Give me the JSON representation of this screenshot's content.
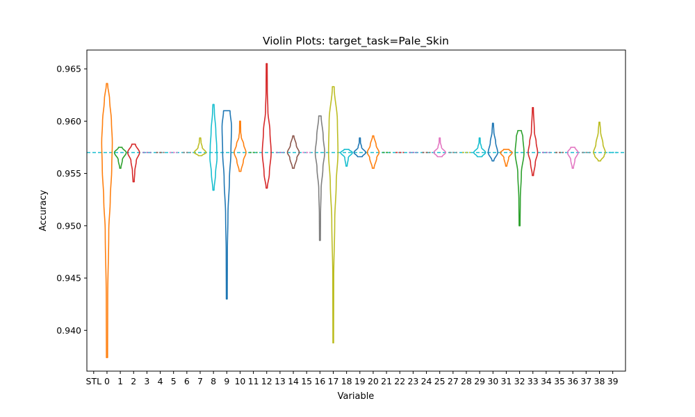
{
  "chart_data": {
    "type": "violin",
    "title": "Violin Plots: target_task=Pale_Skin",
    "xlabel": "Variable",
    "ylabel": "Accuracy",
    "ylim": [
      0.9361,
      0.9668
    ],
    "yticks": [
      "0.940",
      "0.945",
      "0.950",
      "0.955",
      "0.960",
      "0.965"
    ],
    "ytick_values": [
      0.94,
      0.945,
      0.95,
      0.955,
      0.96,
      0.965
    ],
    "reference_line": {
      "value": 0.957,
      "color": "#17becf",
      "style": "dashed"
    },
    "grid": false,
    "legend": "none",
    "categories": [
      "STL",
      "0",
      "1",
      "2",
      "3",
      "4",
      "5",
      "6",
      "7",
      "8",
      "9",
      "10",
      "11",
      "12",
      "13",
      "14",
      "15",
      "16",
      "17",
      "18",
      "19",
      "20",
      "21",
      "22",
      "23",
      "24",
      "25",
      "27",
      "28",
      "29",
      "30",
      "31",
      "32",
      "33",
      "34",
      "35",
      "36",
      "37",
      "38",
      "39"
    ],
    "series": [
      {
        "label": "0",
        "color": "#ff7f0e",
        "min": 0.9374,
        "max": 0.9636,
        "profile": [
          [
            0.9374,
            0.1
          ],
          [
            0.943,
            0.12
          ],
          [
            0.9495,
            0.3
          ],
          [
            0.9525,
            0.55
          ],
          [
            0.9555,
            0.8
          ],
          [
            0.958,
            0.9
          ],
          [
            0.96,
            0.75
          ],
          [
            0.962,
            0.45
          ],
          [
            0.9636,
            0.1
          ]
        ]
      },
      {
        "label": "1",
        "color": "#2ca02c",
        "min": 0.9555,
        "max": 0.9575,
        "profile": [
          [
            0.9555,
            0.1
          ],
          [
            0.9563,
            0.35
          ],
          [
            0.957,
            1.0
          ],
          [
            0.9575,
            0.3
          ]
        ]
      },
      {
        "label": "2",
        "color": "#d62728",
        "min": 0.9542,
        "max": 0.9578,
        "profile": [
          [
            0.9542,
            0.1
          ],
          [
            0.9552,
            0.2
          ],
          [
            0.9562,
            0.45
          ],
          [
            0.957,
            1.0
          ],
          [
            0.9578,
            0.3
          ]
        ]
      },
      {
        "label": "3",
        "color": "#9467bd",
        "flat": true
      },
      {
        "label": "4",
        "color": "#8c564b",
        "flat": true
      },
      {
        "label": "5",
        "color": "#e377c2",
        "flat": true
      },
      {
        "label": "6",
        "color": "#7f7f7f",
        "flat": true
      },
      {
        "label": "7",
        "color": "#bcbd22",
        "min": 0.9567,
        "max": 0.9584,
        "profile": [
          [
            0.9567,
            0.3
          ],
          [
            0.957,
            1.0
          ],
          [
            0.9575,
            0.35
          ],
          [
            0.958,
            0.15
          ],
          [
            0.9584,
            0.1
          ]
        ]
      },
      {
        "label": "8",
        "color": "#17becf",
        "min": 0.9534,
        "max": 0.9616,
        "profile": [
          [
            0.9534,
            0.1
          ],
          [
            0.955,
            0.35
          ],
          [
            0.9565,
            0.6
          ],
          [
            0.9575,
            0.55
          ],
          [
            0.959,
            0.4
          ],
          [
            0.961,
            0.15
          ],
          [
            0.9616,
            0.1
          ]
        ]
      },
      {
        "label": "9",
        "color": "#1f77b4",
        "min": 0.943,
        "max": 0.961,
        "profile": [
          [
            0.943,
            0.08
          ],
          [
            0.9475,
            0.1
          ],
          [
            0.951,
            0.2
          ],
          [
            0.9545,
            0.45
          ],
          [
            0.957,
            0.7
          ],
          [
            0.9595,
            0.8
          ],
          [
            0.961,
            0.55
          ]
        ]
      },
      {
        "label": "10",
        "color": "#ff7f0e",
        "min": 0.9552,
        "max": 0.96,
        "profile": [
          [
            0.9552,
            0.15
          ],
          [
            0.9562,
            0.55
          ],
          [
            0.957,
            1.0
          ],
          [
            0.9578,
            0.6
          ],
          [
            0.9585,
            0.2
          ],
          [
            0.959,
            0.1
          ],
          [
            0.96,
            0.08
          ]
        ]
      },
      {
        "label": "11",
        "color": "#2ca02c",
        "flat": true
      },
      {
        "label": "12",
        "color": "#d62728",
        "min": 0.9536,
        "max": 0.9655,
        "profile": [
          [
            0.9536,
            0.1
          ],
          [
            0.955,
            0.45
          ],
          [
            0.957,
            0.75
          ],
          [
            0.959,
            0.55
          ],
          [
            0.961,
            0.2
          ],
          [
            0.963,
            0.1
          ],
          [
            0.9655,
            0.08
          ]
        ]
      },
      {
        "label": "13",
        "color": "#9467bd",
        "flat": true
      },
      {
        "label": "14",
        "color": "#8c564b",
        "min": 0.9555,
        "max": 0.9586,
        "profile": [
          [
            0.9555,
            0.15
          ],
          [
            0.9565,
            0.6
          ],
          [
            0.957,
            1.0
          ],
          [
            0.9577,
            0.5
          ],
          [
            0.9586,
            0.1
          ]
        ]
      },
      {
        "label": "15",
        "color": "#e377c2",
        "flat": true
      },
      {
        "label": "16",
        "color": "#7f7f7f",
        "min": 0.9486,
        "max": 0.9605,
        "profile": [
          [
            0.9486,
            0.08
          ],
          [
            0.951,
            0.1
          ],
          [
            0.9535,
            0.2
          ],
          [
            0.9555,
            0.5
          ],
          [
            0.957,
            0.8
          ],
          [
            0.9585,
            0.55
          ],
          [
            0.9605,
            0.2
          ]
        ]
      },
      {
        "label": "17",
        "color": "#bcbd22",
        "min": 0.9388,
        "max": 0.9633,
        "profile": [
          [
            0.9388,
            0.06
          ],
          [
            0.945,
            0.08
          ],
          [
            0.9505,
            0.25
          ],
          [
            0.954,
            0.5
          ],
          [
            0.957,
            0.8
          ],
          [
            0.96,
            0.7
          ],
          [
            0.9633,
            0.15
          ]
        ]
      },
      {
        "label": "18",
        "color": "#17becf",
        "min": 0.9557,
        "max": 0.9573,
        "profile": [
          [
            0.9557,
            0.1
          ],
          [
            0.9565,
            0.3
          ],
          [
            0.957,
            1.0
          ],
          [
            0.9573,
            0.4
          ]
        ]
      },
      {
        "label": "19",
        "color": "#1f77b4",
        "min": 0.9566,
        "max": 0.9584,
        "profile": [
          [
            0.9566,
            0.4
          ],
          [
            0.957,
            1.0
          ],
          [
            0.9575,
            0.3
          ],
          [
            0.958,
            0.1
          ],
          [
            0.9584,
            0.08
          ]
        ]
      },
      {
        "label": "20",
        "color": "#ff7f0e",
        "min": 0.9555,
        "max": 0.9586,
        "profile": [
          [
            0.9555,
            0.15
          ],
          [
            0.9565,
            0.6
          ],
          [
            0.957,
            1.0
          ],
          [
            0.9577,
            0.5
          ],
          [
            0.9586,
            0.1
          ]
        ]
      },
      {
        "label": "21",
        "color": "#2ca02c",
        "flat": true
      },
      {
        "label": "22",
        "color": "#d62728",
        "flat": true
      },
      {
        "label": "23",
        "color": "#9467bd",
        "flat": true
      },
      {
        "label": "24",
        "color": "#8c564b",
        "flat": true
      },
      {
        "label": "25",
        "color": "#e377c2",
        "min": 0.9566,
        "max": 0.9584,
        "profile": [
          [
            0.9566,
            0.4
          ],
          [
            0.957,
            1.0
          ],
          [
            0.9575,
            0.3
          ],
          [
            0.958,
            0.1
          ],
          [
            0.9584,
            0.08
          ]
        ]
      },
      {
        "label": "27",
        "color": "#7f7f7f",
        "flat": true
      },
      {
        "label": "28",
        "color": "#bcbd22",
        "flat": true
      },
      {
        "label": "29",
        "color": "#17becf",
        "min": 0.9566,
        "max": 0.9584,
        "profile": [
          [
            0.9566,
            0.4
          ],
          [
            0.957,
            1.0
          ],
          [
            0.9575,
            0.3
          ],
          [
            0.958,
            0.1
          ],
          [
            0.9584,
            0.08
          ]
        ]
      },
      {
        "label": "30",
        "color": "#1f77b4",
        "min": 0.9562,
        "max": 0.9598,
        "profile": [
          [
            0.9562,
            0.15
          ],
          [
            0.957,
            0.8
          ],
          [
            0.958,
            0.45
          ],
          [
            0.959,
            0.15
          ],
          [
            0.9598,
            0.08
          ]
        ]
      },
      {
        "label": "31",
        "color": "#ff7f0e",
        "min": 0.9557,
        "max": 0.9573,
        "profile": [
          [
            0.9557,
            0.1
          ],
          [
            0.9565,
            0.4
          ],
          [
            0.957,
            1.0
          ],
          [
            0.9573,
            0.45
          ]
        ]
      },
      {
        "label": "32",
        "color": "#2ca02c",
        "min": 0.95,
        "max": 0.9591,
        "profile": [
          [
            0.95,
            0.08
          ],
          [
            0.9525,
            0.12
          ],
          [
            0.955,
            0.3
          ],
          [
            0.957,
            0.75
          ],
          [
            0.9585,
            0.55
          ],
          [
            0.9591,
            0.3
          ]
        ]
      },
      {
        "label": "33",
        "color": "#d62728",
        "min": 0.9548,
        "max": 0.9613,
        "profile": [
          [
            0.9548,
            0.1
          ],
          [
            0.956,
            0.4
          ],
          [
            0.957,
            0.8
          ],
          [
            0.958,
            0.55
          ],
          [
            0.959,
            0.25
          ],
          [
            0.9613,
            0.08
          ]
        ]
      },
      {
        "label": "34",
        "color": "#9467bd",
        "flat": true
      },
      {
        "label": "35",
        "color": "#8c564b",
        "flat": true
      },
      {
        "label": "36",
        "color": "#e377c2",
        "min": 0.9555,
        "max": 0.9575,
        "profile": [
          [
            0.9555,
            0.1
          ],
          [
            0.9563,
            0.35
          ],
          [
            0.957,
            0.9
          ],
          [
            0.9575,
            0.35
          ]
        ]
      },
      {
        "label": "37",
        "color": "#7f7f7f",
        "flat": true
      },
      {
        "label": "38",
        "color": "#bcbd22",
        "min": 0.9562,
        "max": 0.9599,
        "profile": [
          [
            0.9562,
            0.2
          ],
          [
            0.9567,
            0.8
          ],
          [
            0.957,
            1.0
          ],
          [
            0.9578,
            0.6
          ],
          [
            0.959,
            0.2
          ],
          [
            0.9599,
            0.08
          ]
        ]
      },
      {
        "label": "39",
        "color": "#17becf",
        "flat": true
      }
    ]
  }
}
